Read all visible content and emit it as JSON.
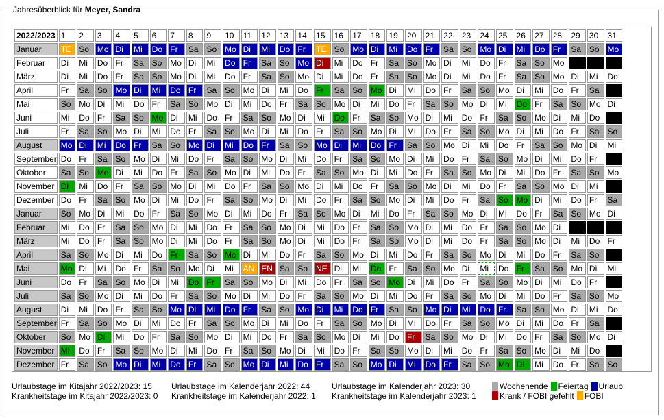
{
  "title_prefix": "Jahresüberblick für ",
  "person": "Meyer, Sandra",
  "header_label": "2022/2023",
  "weekday_abbrs": [
    "Mo",
    "Di",
    "Mi",
    "Do",
    "Fr",
    "Sa",
    "So"
  ],
  "months": [
    {
      "name": "Januar",
      "year": 2022,
      "month": 1
    },
    {
      "name": "Februar",
      "year": 2022,
      "month": 2
    },
    {
      "name": "März",
      "year": 2022,
      "month": 3
    },
    {
      "name": "April",
      "year": 2022,
      "month": 4
    },
    {
      "name": "Mai",
      "year": 2022,
      "month": 5
    },
    {
      "name": "Juni",
      "year": 2022,
      "month": 6
    },
    {
      "name": "Juli",
      "year": 2022,
      "month": 7
    },
    {
      "name": "August",
      "year": 2022,
      "month": 8
    },
    {
      "name": "September",
      "year": 2022,
      "month": 9
    },
    {
      "name": "Oktober",
      "year": 2022,
      "month": 10
    },
    {
      "name": "November",
      "year": 2022,
      "month": 11
    },
    {
      "name": "Dezember",
      "year": 2022,
      "month": 12
    },
    {
      "name": "Januar",
      "year": 2023,
      "month": 1
    },
    {
      "name": "Februar",
      "year": 2023,
      "month": 2
    },
    {
      "name": "März",
      "year": 2023,
      "month": 3
    },
    {
      "name": "April",
      "year": 2023,
      "month": 4
    },
    {
      "name": "Mai",
      "year": 2023,
      "month": 5
    },
    {
      "name": "Juni",
      "year": 2023,
      "month": 6
    },
    {
      "name": "Juli",
      "year": 2023,
      "month": 7
    },
    {
      "name": "August",
      "year": 2023,
      "month": 8
    },
    {
      "name": "September",
      "year": 2023,
      "month": 9
    },
    {
      "name": "Oktober",
      "year": 2023,
      "month": 10
    },
    {
      "name": "November",
      "year": 2023,
      "month": 11
    },
    {
      "name": "Dezember",
      "year": 2023,
      "month": 12
    }
  ],
  "marks": {
    "2022-01": {
      "1": "FB",
      "2": "WE",
      "3": "UR",
      "4": "UR",
      "5": "UR",
      "6": "UR",
      "7": "UR",
      "10": "UR",
      "11": "UR",
      "12": "UR",
      "13": "UR",
      "14": "UR",
      "15": "FB",
      "17": "UR",
      "18": "UR",
      "19": "UR",
      "20": "UR",
      "21": "UR",
      "24": "UR",
      "25": "UR",
      "26": "UR",
      "27": "UR",
      "28": "UR",
      "31": "UR"
    },
    "2022-02": {
      "10": "UR",
      "11": "UR",
      "14": "UR",
      "15": "KR"
    },
    "2022-03": {},
    "2022-04": {
      "4": "UR",
      "5": "UR",
      "6": "UR",
      "7": "UR",
      "8": "UR",
      "15": "FT",
      "18": "FT"
    },
    "2022-05": {
      "1": "WE",
      "26": "FT"
    },
    "2022-06": {
      "6": "FT",
      "16": "FT"
    },
    "2022-07": {},
    "2022-08": {
      "1": "UR",
      "2": "UR",
      "3": "UR",
      "4": "UR",
      "5": "UR",
      "8": "UR",
      "9": "UR",
      "10": "UR",
      "11": "UR",
      "12": "UR",
      "15": "UR",
      "16": "UR",
      "17": "UR",
      "18": "UR",
      "19": "UR"
    },
    "2022-09": {},
    "2022-10": {
      "3": "FT"
    },
    "2022-11": {
      "1": "FT"
    },
    "2022-12": {
      "25": "FT",
      "26": "FT"
    },
    "2023-01": {},
    "2023-02": {},
    "2023-03": {},
    "2023-04": {
      "7": "FT",
      "10": "FT"
    },
    "2023-05": {
      "1": "FT",
      "11": "FB",
      "12": "KR",
      "15": "KR",
      "18": "FT",
      "24": "DB",
      "26": "FT"
    },
    "2023-06": {
      "8": "FT",
      "9": "FT",
      "19": "FT"
    },
    "2023-07": {},
    "2023-08": {
      "7": "UR",
      "8": "UR",
      "9": "UR",
      "10": "UR",
      "11": "UR",
      "14": "UR",
      "15": "UR",
      "16": "UR",
      "17": "UR",
      "18": "UR",
      "21": "UR",
      "22": "UR",
      "23": "UR",
      "24": "UR",
      "25": "UR"
    },
    "2023-09": {},
    "2023-10": {
      "3": "FT",
      "20": "KR"
    },
    "2023-11": {
      "1": "FT"
    },
    "2023-12": {
      "4": "UR",
      "5": "UR",
      "6": "UR",
      "7": "UR",
      "8": "UR",
      "11": "UR",
      "12": "UR",
      "13": "UR",
      "14": "UR",
      "15": "UR",
      "18": "UR",
      "19": "UR",
      "20": "UR",
      "21": "UR",
      "22": "UR",
      "25": "FT",
      "26": "FT"
    }
  },
  "mark_labels": {
    "2022-01-01": "TE",
    "2022-01-15": "TE",
    "2023-05-11": "AN",
    "2023-05-12": "EN",
    "2023-05-15": "NE"
  },
  "colors": {
    "wochenende": "#a9a9a9",
    "feiertag": "#00aa00",
    "urlaub": "#0000aa",
    "krank": "#aa0000",
    "fobi": "#ffaa00"
  },
  "stats": {
    "col1": [
      "Urlaubstage im Kitajahr 2022/2023: 15",
      "Krankheitstage im Kitajahr 2022/2023: 0"
    ],
    "col2": [
      "Urlaubstage im Kalenderjahr 2022: 44",
      "Krankheitstage im Kalenderjahr 2022: 1"
    ],
    "col3": [
      "Urlaubstage im Kalenderjahr 2023: 30",
      "Krankheitstage im Kalenderjahr 2023: 1"
    ]
  },
  "legend": {
    "row1": [
      {
        "key": "wochenende",
        "label": "Wochenende"
      },
      {
        "key": "feiertag",
        "label": "Feiertag"
      },
      {
        "key": "urlaub",
        "label": "Urlaub"
      }
    ],
    "row2": [
      {
        "key": "krank",
        "label": "Krank / FOBI gefehlt"
      },
      {
        "key": "fobi",
        "label": "FOBI"
      }
    ]
  }
}
